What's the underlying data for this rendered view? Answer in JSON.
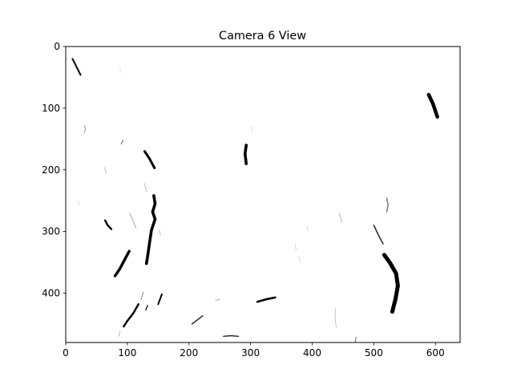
{
  "chart_data": {
    "type": "image",
    "title": "Camera 6 View",
    "xlabel": "",
    "ylabel": "",
    "xlim": [
      0,
      640
    ],
    "ylim": [
      480,
      0
    ],
    "y_inverted": true,
    "grid": false,
    "xticks": [
      0,
      100,
      200,
      300,
      400,
      500,
      600
    ],
    "yticks": [
      0,
      100,
      200,
      300,
      400
    ],
    "image_description": "binary event frame: white background with thin black curved streaks",
    "streaks": [
      {
        "points": [
          [
            11,
            20
          ],
          [
            17,
            32
          ],
          [
            24,
            46
          ]
        ],
        "width": 2.2,
        "opacity": 0.9
      },
      {
        "points": [
          [
            589,
            78
          ],
          [
            596,
            93
          ],
          [
            603,
            114
          ]
        ],
        "width": 4.5,
        "opacity": 1
      },
      {
        "points": [
          [
            293,
            160
          ],
          [
            291,
            174
          ],
          [
            293,
            190
          ]
        ],
        "width": 3.6,
        "opacity": 1
      },
      {
        "points": [
          [
            128,
            170
          ],
          [
            136,
            182
          ],
          [
            144,
            197
          ]
        ],
        "width": 3,
        "opacity": 1
      },
      {
        "points": [
          [
            143,
            242
          ],
          [
            145,
            255
          ],
          [
            141,
            268
          ],
          [
            145,
            280
          ],
          [
            139,
            298
          ],
          [
            136,
            318
          ],
          [
            133,
            340
          ],
          [
            131,
            352
          ]
        ],
        "width": 3.6,
        "opacity": 1
      },
      {
        "points": [
          [
            103,
            332
          ],
          [
            96,
            345
          ],
          [
            88,
            360
          ],
          [
            80,
            372
          ]
        ],
        "width": 3.4,
        "opacity": 1
      },
      {
        "points": [
          [
            64,
            282
          ],
          [
            68,
            290
          ],
          [
            74,
            296
          ]
        ],
        "width": 2.4,
        "opacity": 1
      },
      {
        "points": [
          [
            104,
            270
          ],
          [
            109,
            282
          ],
          [
            114,
            294
          ]
        ],
        "width": 1,
        "opacity": 0.35
      },
      {
        "points": [
          [
            517,
            338
          ],
          [
            527,
            352
          ],
          [
            536,
            368
          ],
          [
            539,
            388
          ],
          [
            535,
            410
          ],
          [
            530,
            430
          ]
        ],
        "width": 5,
        "opacity": 1
      },
      {
        "points": [
          [
            500,
            290
          ],
          [
            507,
            305
          ],
          [
            515,
            320
          ]
        ],
        "width": 1.6,
        "opacity": 0.8
      },
      {
        "points": [
          [
            521,
            246
          ],
          [
            523,
            257
          ],
          [
            521,
            268
          ]
        ],
        "width": 1.4,
        "opacity": 0.55
      },
      {
        "points": [
          [
            311,
            414
          ],
          [
            325,
            410
          ],
          [
            340,
            407
          ]
        ],
        "width": 2.6,
        "opacity": 1
      },
      {
        "points": [
          [
            118,
            418
          ],
          [
            110,
            432
          ],
          [
            100,
            445
          ],
          [
            94,
            454
          ]
        ],
        "width": 2.4,
        "opacity": 1
      },
      {
        "points": [
          [
            156,
            402
          ],
          [
            153,
            410
          ],
          [
            150,
            418
          ]
        ],
        "width": 2,
        "opacity": 1
      },
      {
        "points": [
          [
            133,
            420
          ],
          [
            130,
            427
          ]
        ],
        "width": 1.4,
        "opacity": 0.9
      },
      {
        "points": [
          [
            126,
            398
          ],
          [
            124,
            405
          ],
          [
            122,
            410
          ]
        ],
        "width": 1,
        "opacity": 0.45
      },
      {
        "points": [
          [
            222,
            437
          ],
          [
            214,
            443
          ],
          [
            205,
            450
          ]
        ],
        "width": 1.6,
        "opacity": 0.8
      },
      {
        "points": [
          [
            256,
            470
          ],
          [
            268,
            469
          ],
          [
            280,
            470
          ]
        ],
        "width": 1.4,
        "opacity": 0.85
      },
      {
        "points": [
          [
            243,
            412
          ],
          [
            250,
            410
          ]
        ],
        "width": 1,
        "opacity": 0.35
      },
      {
        "points": [
          [
            30,
            128
          ],
          [
            32,
            134
          ],
          [
            30,
            140
          ]
        ],
        "width": 1,
        "opacity": 0.4
      },
      {
        "points": [
          [
            93,
            152
          ],
          [
            90,
            158
          ]
        ],
        "width": 1.2,
        "opacity": 0.55
      },
      {
        "points": [
          [
            63,
            196
          ],
          [
            66,
            206
          ]
        ],
        "width": 0.8,
        "opacity": 0.3
      },
      {
        "points": [
          [
            128,
            222
          ],
          [
            131,
            235
          ]
        ],
        "width": 0.8,
        "opacity": 0.35
      },
      {
        "points": [
          [
            444,
            270
          ],
          [
            448,
            285
          ]
        ],
        "width": 0.9,
        "opacity": 0.35
      },
      {
        "points": [
          [
            438,
            425
          ],
          [
            437,
            440
          ],
          [
            439,
            455
          ]
        ],
        "width": 0.8,
        "opacity": 0.3
      },
      {
        "points": [
          [
            471,
            472
          ],
          [
            470,
            480
          ]
        ],
        "width": 1.2,
        "opacity": 0.55
      },
      {
        "points": [
          [
            88,
            462
          ],
          [
            86,
            470
          ]
        ],
        "width": 0.8,
        "opacity": 0.35
      },
      {
        "points": [
          [
            152,
            298
          ],
          [
            154,
            306
          ]
        ],
        "width": 0.8,
        "opacity": 0.3
      },
      {
        "points": [
          [
            372,
            320
          ],
          [
            374,
            330
          ]
        ],
        "width": 0.6,
        "opacity": 0.25
      },
      {
        "points": [
          [
            378,
            340
          ],
          [
            381,
            350
          ]
        ],
        "width": 0.6,
        "opacity": 0.25
      },
      {
        "points": [
          [
            392,
            292
          ],
          [
            393,
            298
          ]
        ],
        "width": 0.7,
        "opacity": 0.3
      },
      {
        "points": [
          [
            300,
            130
          ],
          [
            303,
            138
          ]
        ],
        "width": 0.6,
        "opacity": 0.25
      },
      {
        "points": [
          [
            20,
            250
          ],
          [
            22,
            258
          ]
        ],
        "width": 0.6,
        "opacity": 0.25
      },
      {
        "points": [
          [
            88,
            36
          ],
          [
            89,
            42
          ]
        ],
        "width": 0.6,
        "opacity": 0.2
      }
    ]
  }
}
